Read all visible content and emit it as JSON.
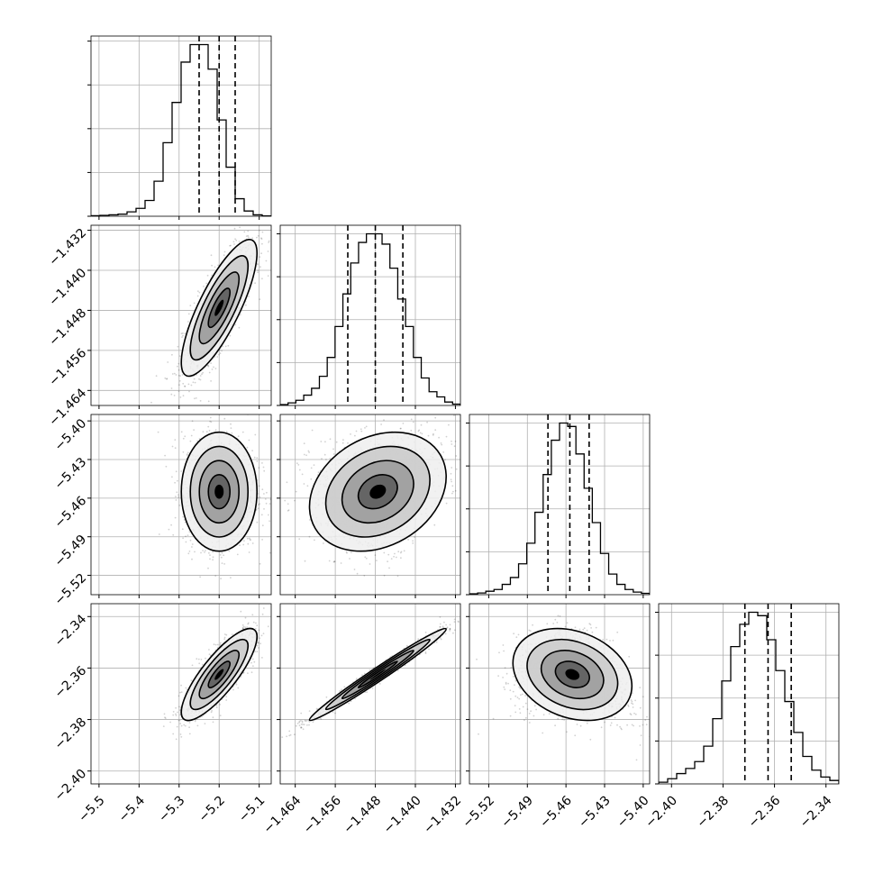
{
  "chart_data": {
    "type": "corner",
    "grid": true,
    "dims": [
      {
        "range": [
          -5.52,
          -5.07
        ],
        "ticks": [
          "-5.5",
          "-5.4",
          "-5.3",
          "-5.2",
          "-5.1"
        ],
        "tick_values": [
          -5.5,
          -5.4,
          -5.3,
          -5.2,
          -5.1
        ],
        "quantiles": [
          -5.25,
          -5.2,
          -5.16
        ],
        "hist": [
          0.3,
          0.5,
          0.8,
          1.2,
          2.5,
          4.5,
          9,
          20,
          42,
          65,
          88,
          98,
          98,
          84,
          55,
          28,
          10,
          3,
          0.8,
          0.2
        ]
      },
      {
        "range": [
          -1.467,
          -1.431
        ],
        "ticks": [
          "-1.464",
          "-1.456",
          "-1.448",
          "-1.440",
          "-1.432"
        ],
        "tick_values": [
          -1.464,
          -1.456,
          -1.448,
          -1.44,
          -1.432
        ],
        "quantiles": [
          -1.4535,
          -1.448,
          -1.4425
        ],
        "hist": [
          0.5,
          1.5,
          3,
          6,
          10,
          17,
          28,
          46,
          65,
          83,
          95,
          100,
          100,
          94,
          80,
          62,
          46,
          28,
          16,
          8,
          5,
          2,
          0.8
        ]
      },
      {
        "range": [
          -5.535,
          -5.395
        ],
        "ticks": [
          "-5.52",
          "-5.49",
          "-5.46",
          "-5.43",
          "-5.40"
        ],
        "tick_values": [
          -5.52,
          -5.49,
          -5.46,
          -5.43,
          -5.4
        ],
        "quantiles": [
          -5.474,
          -5.457,
          -5.442
        ],
        "hist": [
          0.5,
          1,
          2,
          3,
          6,
          10,
          18,
          30,
          48,
          70,
          90,
          100,
          98,
          82,
          62,
          42,
          24,
          12,
          6,
          3,
          1.5,
          0.8
        ]
      },
      {
        "range": [
          -2.405,
          -2.335
        ],
        "ticks": [
          "-2.40",
          "-2.38",
          "-2.36",
          "-2.34"
        ],
        "tick_values": [
          -2.4,
          -2.38,
          -2.36,
          -2.34
        ],
        "quantiles": [
          -2.3715,
          -2.3625,
          -2.3535
        ],
        "hist": [
          1,
          3,
          6,
          9,
          13,
          22,
          38,
          60,
          80,
          93,
          100,
          98,
          84,
          66,
          48,
          30,
          16,
          8,
          4,
          2
        ]
      }
    ],
    "pairs": [
      {
        "x": 0,
        "y": 1,
        "mean": [
          -5.2,
          -1.4475
        ],
        "sd": [
          0.045,
          0.0065
        ],
        "rho": 0.8,
        "skew": 0.0,
        "pts": 1300
      },
      {
        "x": 0,
        "y": 2,
        "mean": [
          -5.2,
          -5.455
        ],
        "sd": [
          0.045,
          0.022
        ],
        "rho": 0.0,
        "skew": 0.0,
        "pts": 1300
      },
      {
        "x": 1,
        "y": 2,
        "mean": [
          -1.4475,
          -5.455
        ],
        "sd": [
          0.0065,
          0.022
        ],
        "rho": 0.25,
        "skew": 0.5,
        "pts": 1300
      },
      {
        "x": 0,
        "y": 3,
        "mean": [
          -5.2,
          -2.3625
        ],
        "sd": [
          0.045,
          0.0085
        ],
        "rho": 0.82,
        "skew": 0.0,
        "pts": 1300
      },
      {
        "x": 1,
        "y": 3,
        "mean": [
          -1.4475,
          -2.3625
        ],
        "sd": [
          0.0065,
          0.0085
        ],
        "rho": 0.985,
        "skew": 0.0,
        "pts": 1300
      },
      {
        "x": 2,
        "y": 3,
        "mean": [
          -5.455,
          -2.3625
        ],
        "sd": [
          0.022,
          0.0085
        ],
        "rho": -0.25,
        "skew": -0.6,
        "pts": 1300
      }
    ]
  }
}
